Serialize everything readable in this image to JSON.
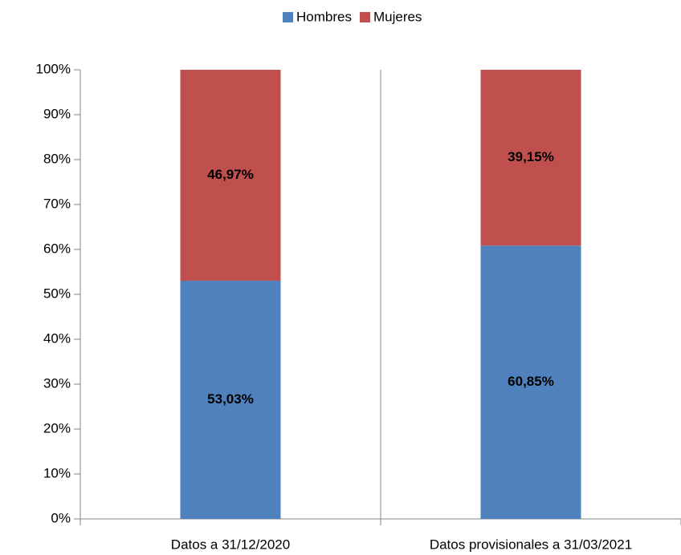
{
  "chart_data": {
    "type": "bar",
    "stacked": true,
    "categories": [
      "Datos a 31/12/2020",
      "Datos provisionales a 31/03/2021"
    ],
    "series": [
      {
        "name": "Hombres",
        "color": "#4f81bd",
        "values": [
          53.03,
          60.85
        ],
        "value_labels": [
          "53,03%",
          "60,85%"
        ]
      },
      {
        "name": "Mujeres",
        "color": "#c0504d",
        "values": [
          46.97,
          39.15
        ],
        "value_labels": [
          "46,97%",
          "39,15%"
        ]
      }
    ],
    "ylim": [
      0,
      100
    ],
    "yticks": [
      {
        "value": 0,
        "label": "0%"
      },
      {
        "value": 10,
        "label": "10%"
      },
      {
        "value": 20,
        "label": "20%"
      },
      {
        "value": 30,
        "label": "30%"
      },
      {
        "value": 40,
        "label": "40%"
      },
      {
        "value": 50,
        "label": "50%"
      },
      {
        "value": 60,
        "label": "60%"
      },
      {
        "value": 70,
        "label": "70%"
      },
      {
        "value": 80,
        "label": "80%"
      },
      {
        "value": 90,
        "label": "90%"
      },
      {
        "value": 100,
        "label": "100%"
      }
    ],
    "legend": "top",
    "grid": false
  }
}
